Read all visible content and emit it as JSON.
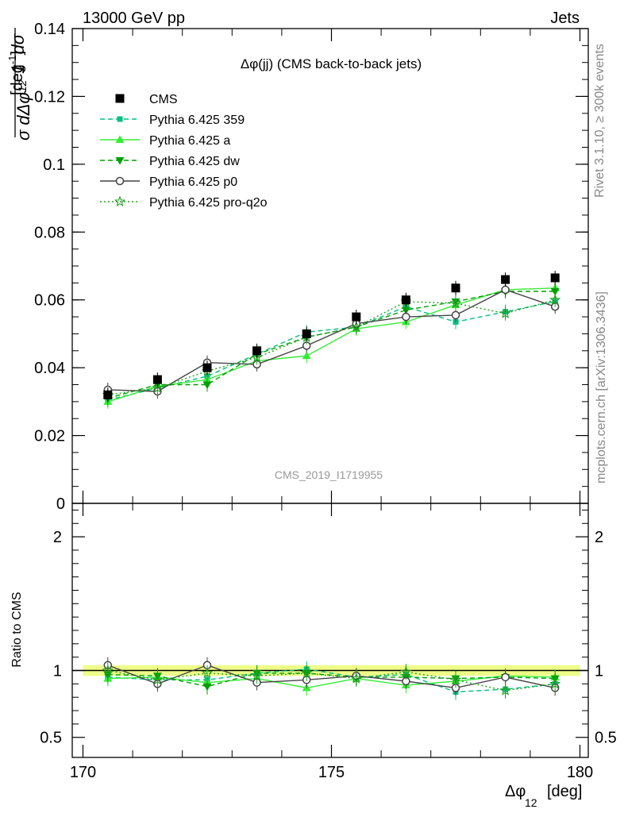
{
  "header": {
    "left": "13000 GeV pp",
    "right": "Jets"
  },
  "side": {
    "rivet": "Rivet 3.1.10, ≥ 300k events",
    "mcplots": "mcplots.cern.ch [arXiv:1306.3436]"
  },
  "watermark": "CMS_2019_I1719955",
  "ratio_ylabel": "Ratio to CMS",
  "colors": {
    "cms": "#000000",
    "p359": "#00c080",
    "pa": "#33ee33",
    "pdw": "#00a000",
    "pp0": "#444444",
    "ppro": "#20a020",
    "band": "#eeff88"
  },
  "chart_data": {
    "type": "line",
    "title": "Δφ(jj) (CMS back-to-back jets)",
    "xlabel": "Δφ",
    "xlabel_sub": "12",
    "xlabel_unit": "[deg]",
    "ylabel": "1/σ dσ/dΔφ_12 [deg^-1]",
    "xlim": [
      170,
      180
    ],
    "ylim": [
      0,
      0.14
    ],
    "ratio_ylim": [
      0.35,
      2.25
    ],
    "x_ticks": [
      170,
      175,
      180
    ],
    "y_ticks": [
      0,
      0.02,
      0.04,
      0.06,
      0.08,
      0.1,
      0.12,
      0.14
    ],
    "y_tick_labels": [
      "0",
      "0.02",
      "0.04",
      "0.06",
      "0.08",
      "0.1",
      "0.12",
      "0.14"
    ],
    "ratio_ticks": [
      0.5,
      1,
      2
    ],
    "x": [
      170.5,
      171.5,
      172.5,
      173.5,
      174.5,
      175.5,
      176.5,
      177.5,
      178.5,
      179.5
    ],
    "series": [
      {
        "name": "CMS",
        "key": "cms",
        "marker": "square",
        "dash": "none",
        "values": [
          0.032,
          0.0365,
          0.04,
          0.045,
          0.05,
          0.055,
          0.06,
          0.0635,
          0.066,
          0.0665
        ]
      },
      {
        "name": "Pythia 6.425 359",
        "key": "p359",
        "marker": "smallsquare",
        "dash": "6,4",
        "values": [
          0.0305,
          0.034,
          0.0375,
          0.044,
          0.0505,
          0.052,
          0.058,
          0.0535,
          0.0565,
          0.0595
        ]
      },
      {
        "name": "Pythia 6.425 a",
        "key": "pa",
        "marker": "triangle-up",
        "dash": "none",
        "values": [
          0.03,
          0.0345,
          0.0365,
          0.042,
          0.0435,
          0.0515,
          0.0535,
          0.0585,
          0.063,
          0.0635
        ]
      },
      {
        "name": "Pythia 6.425 dw",
        "key": "pdw",
        "marker": "triangle-down",
        "dash": "6,4",
        "values": [
          0.031,
          0.035,
          0.035,
          0.044,
          0.049,
          0.052,
          0.057,
          0.0595,
          0.0625,
          0.0625
        ]
      },
      {
        "name": "Pythia 6.425 p0",
        "key": "pp0",
        "marker": "circle",
        "dash": "none",
        "values": [
          0.0335,
          0.033,
          0.0415,
          0.041,
          0.0465,
          0.053,
          0.055,
          0.0555,
          0.063,
          0.058
        ]
      },
      {
        "name": "Pythia 6.425 pro-q2o",
        "key": "ppro",
        "marker": "star",
        "dash": "2,3",
        "values": [
          0.032,
          0.034,
          0.039,
          0.043,
          0.049,
          0.052,
          0.0595,
          0.059,
          0.056,
          0.06
        ]
      }
    ],
    "ratio_series": [
      {
        "key": "p359",
        "values": [
          0.95,
          0.93,
          0.93,
          0.98,
          1.01,
          0.95,
          0.97,
          0.84,
          0.86,
          0.9
        ]
      },
      {
        "key": "pa",
        "values": [
          0.94,
          0.95,
          0.91,
          0.94,
          0.87,
          0.94,
          0.89,
          0.92,
          0.96,
          0.95
        ]
      },
      {
        "key": "pdw",
        "values": [
          0.97,
          0.96,
          0.88,
          0.98,
          0.98,
          0.95,
          0.95,
          0.94,
          0.95,
          0.94
        ]
      },
      {
        "key": "pp0",
        "values": [
          1.04,
          0.9,
          1.04,
          0.91,
          0.93,
          0.96,
          0.92,
          0.87,
          0.95,
          0.87
        ]
      },
      {
        "key": "ppro",
        "values": [
          1.0,
          0.93,
          0.98,
          0.96,
          0.98,
          0.94,
          0.99,
          0.93,
          0.85,
          0.9
        ]
      }
    ]
  }
}
